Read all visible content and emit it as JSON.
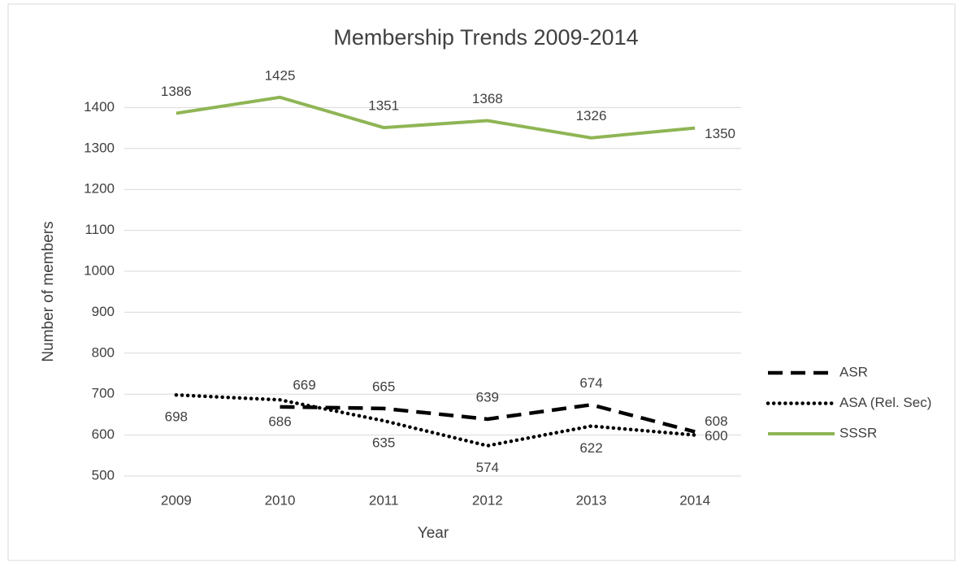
{
  "chart_data": {
    "type": "line",
    "title": "Membership Trends 2009-2014",
    "x_label": "Year",
    "y_label": "Number of members",
    "categories": [
      "2009",
      "2010",
      "2011",
      "2012",
      "2013",
      "2014"
    ],
    "series": [
      {
        "name": "ASR",
        "color": "#000000",
        "dash": "dashed",
        "values": [
          null,
          669,
          665,
          639,
          674,
          608
        ]
      },
      {
        "name": "ASA (Rel. Sec)",
        "color": "#000000",
        "dash": "dotted",
        "values": [
          698,
          686,
          635,
          574,
          622,
          600
        ]
      },
      {
        "name": "SSSR",
        "color": "#8fb555",
        "dash": "solid",
        "values": [
          1386,
          1425,
          1351,
          1368,
          1326,
          1350
        ]
      }
    ],
    "ylim": [
      500,
      1500
    ],
    "yticks": [
      500,
      600,
      700,
      800,
      900,
      1000,
      1100,
      1200,
      1300,
      1400
    ],
    "grid": true,
    "legend": "right"
  }
}
